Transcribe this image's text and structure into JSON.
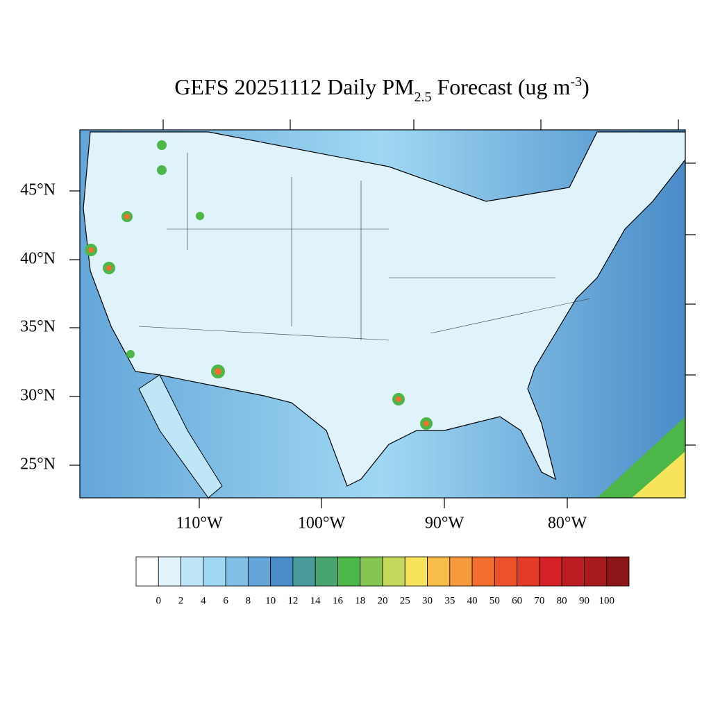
{
  "title": {
    "text": "GEFS 20251112 Daily PM",
    "subscript": "2.5",
    "middle": " Forecast (ug m",
    "superscript": "-3",
    "end": ")"
  },
  "map": {
    "lat_labels": [
      "45°N",
      "40°N",
      "35°N",
      "30°N",
      "25°N"
    ],
    "lon_labels": [
      "110°W",
      "100°W",
      "90°W",
      "80°W"
    ]
  },
  "colorbar": {
    "levels": [
      0,
      2,
      4,
      6,
      8,
      10,
      12,
      14,
      16,
      18,
      20,
      25,
      30,
      35,
      40,
      50,
      60,
      70,
      80,
      90,
      100
    ],
    "colors": [
      "#ffffff",
      "#e0f3fb",
      "#bfe6f7",
      "#a0d8f3",
      "#80bee6",
      "#64a6d9",
      "#4a8cc8",
      "#4a9b9b",
      "#48a56e",
      "#4cb748",
      "#85c552",
      "#c3d75a",
      "#f8e45c",
      "#f8bc48",
      "#f69a3e",
      "#f26d2f",
      "#eb5229",
      "#e33a26",
      "#d42126",
      "#bb1c22",
      "#a71b1f",
      "#8b1519"
    ]
  }
}
